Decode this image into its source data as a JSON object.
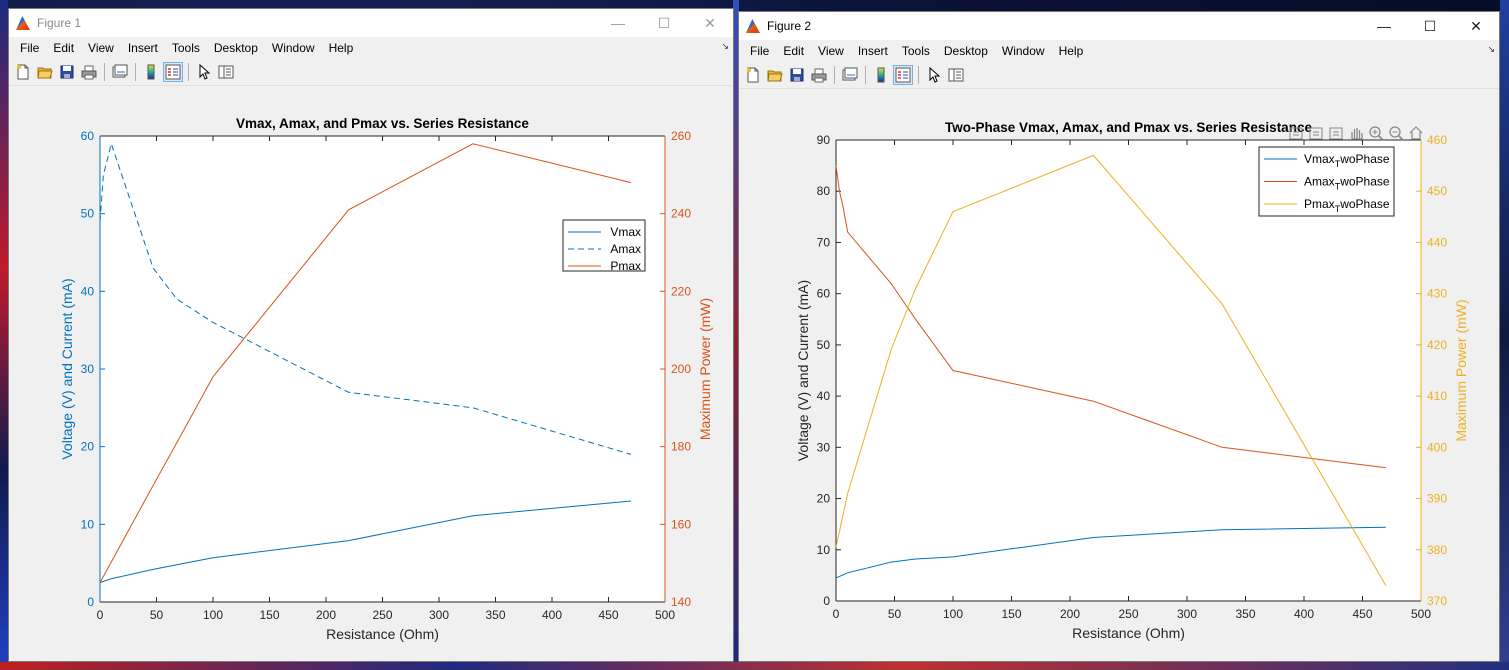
{
  "desktop": {},
  "figure1": {
    "window_title": "Figure 1",
    "menu": [
      "File",
      "Edit",
      "View",
      "Insert",
      "Tools",
      "Desktop",
      "Window",
      "Help"
    ],
    "toolbar_icons": [
      "new-figure-icon",
      "open-file-icon",
      "save-icon",
      "print-icon",
      "link-plot-icon",
      "insert-colorbar-icon",
      "insert-legend-icon",
      "edit-plot-icon",
      "property-inspector-icon"
    ]
  },
  "figure2": {
    "window_title": "Figure 2",
    "menu": [
      "File",
      "Edit",
      "View",
      "Insert",
      "Tools",
      "Desktop",
      "Window",
      "Help"
    ],
    "toolbar_icons": [
      "new-figure-icon",
      "open-file-icon",
      "save-icon",
      "print-icon",
      "link-plot-icon",
      "insert-colorbar-icon",
      "insert-legend-icon",
      "edit-plot-icon",
      "property-inspector-icon"
    ],
    "axes_toolbar_icons": [
      "export-icon",
      "brush-icon",
      "datatip-icon",
      "pan-icon",
      "zoom-in-icon",
      "zoom-out-icon",
      "home-icon"
    ]
  },
  "colors": {
    "blue": "#0072bd",
    "orange": "#d95319",
    "yellow": "#edb120"
  },
  "chart_data": [
    {
      "type": "line",
      "title": "Vmax, Amax, and Pmax vs. Series Resistance",
      "xlabel": "Resistance (Ohm)",
      "ylabel_left": "Voltage (V) and Current (mA)",
      "ylabel_right": "Maximum Power (mW)",
      "xlim": [
        0,
        500
      ],
      "ylim_left": [
        0,
        60
      ],
      "ylim_right": [
        140,
        260
      ],
      "xticks": [
        0,
        50,
        100,
        150,
        200,
        250,
        300,
        350,
        400,
        450,
        500
      ],
      "yticks_left": [
        0,
        10,
        20,
        30,
        40,
        50,
        60
      ],
      "yticks_right": [
        140,
        160,
        180,
        200,
        220,
        240,
        260
      ],
      "legend_position": "upper-right",
      "series": [
        {
          "name": "Vmax",
          "axis": "left",
          "style": "solid",
          "color": "#0072bd",
          "x": [
            0,
            10,
            47,
            68,
            100,
            220,
            330,
            470
          ],
          "y": [
            2.5,
            3.0,
            4.2,
            4.8,
            5.7,
            7.9,
            11.1,
            13.0
          ]
        },
        {
          "name": "Amax",
          "axis": "left",
          "style": "dashed",
          "color": "#0072bd",
          "x": [
            0,
            3,
            10,
            47,
            68,
            100,
            220,
            330,
            470
          ],
          "y": [
            49,
            55,
            59,
            43,
            39,
            36,
            27,
            25,
            19
          ]
        },
        {
          "name": "Pmax",
          "axis": "right",
          "style": "solid",
          "color": "#d95319",
          "x": [
            0,
            47,
            68,
            100,
            220,
            330,
            470
          ],
          "y": [
            145,
            170,
            181,
            198,
            241,
            258,
            248
          ]
        }
      ]
    },
    {
      "type": "line",
      "title": "Two-Phase Vmax, Amax, and Pmax vs. Series Resistance",
      "xlabel": "Resistance (Ohm)",
      "ylabel_left": "Voltage (V) and Current (mA)",
      "ylabel_right": "Maximum Power (mW)",
      "xlim": [
        0,
        500
      ],
      "ylim_left": [
        0,
        90
      ],
      "ylim_right": [
        370,
        460
      ],
      "xticks": [
        0,
        50,
        100,
        150,
        200,
        250,
        300,
        350,
        400,
        450,
        500
      ],
      "yticks_left": [
        0,
        10,
        20,
        30,
        40,
        50,
        60,
        70,
        80,
        90
      ],
      "yticks_right": [
        370,
        380,
        390,
        400,
        410,
        420,
        430,
        440,
        450,
        460
      ],
      "legend_position": "upper-right",
      "series": [
        {
          "name": "Vmax_TwoPhase",
          "label_main": "Vmax",
          "label_sub": "T",
          "label_rest": "woPhase",
          "axis": "left",
          "color": "#0072bd",
          "x": [
            0,
            10,
            47,
            68,
            100,
            220,
            330,
            470
          ],
          "y": [
            4.5,
            5.5,
            7.6,
            8.2,
            8.6,
            12.4,
            13.9,
            14.4
          ]
        },
        {
          "name": "Amax_TwoPhase",
          "label_main": "Amax",
          "label_sub": "T",
          "label_rest": "woPhase",
          "axis": "left",
          "color": "#d95319",
          "x": [
            0,
            3,
            6,
            10,
            47,
            68,
            100,
            220,
            330,
            470
          ],
          "y": [
            85,
            80,
            77,
            72,
            62,
            55,
            45,
            39,
            30,
            26
          ]
        },
        {
          "name": "Pmax_TwoPhase",
          "label_main": "Pmax",
          "label_sub": "T",
          "label_rest": "woPhase",
          "axis": "right",
          "color": "#edb120",
          "x": [
            0,
            10,
            47,
            68,
            100,
            220,
            330,
            470
          ],
          "y": [
            380.5,
            391,
            419,
            431,
            446,
            457,
            428,
            373
          ]
        }
      ]
    }
  ]
}
